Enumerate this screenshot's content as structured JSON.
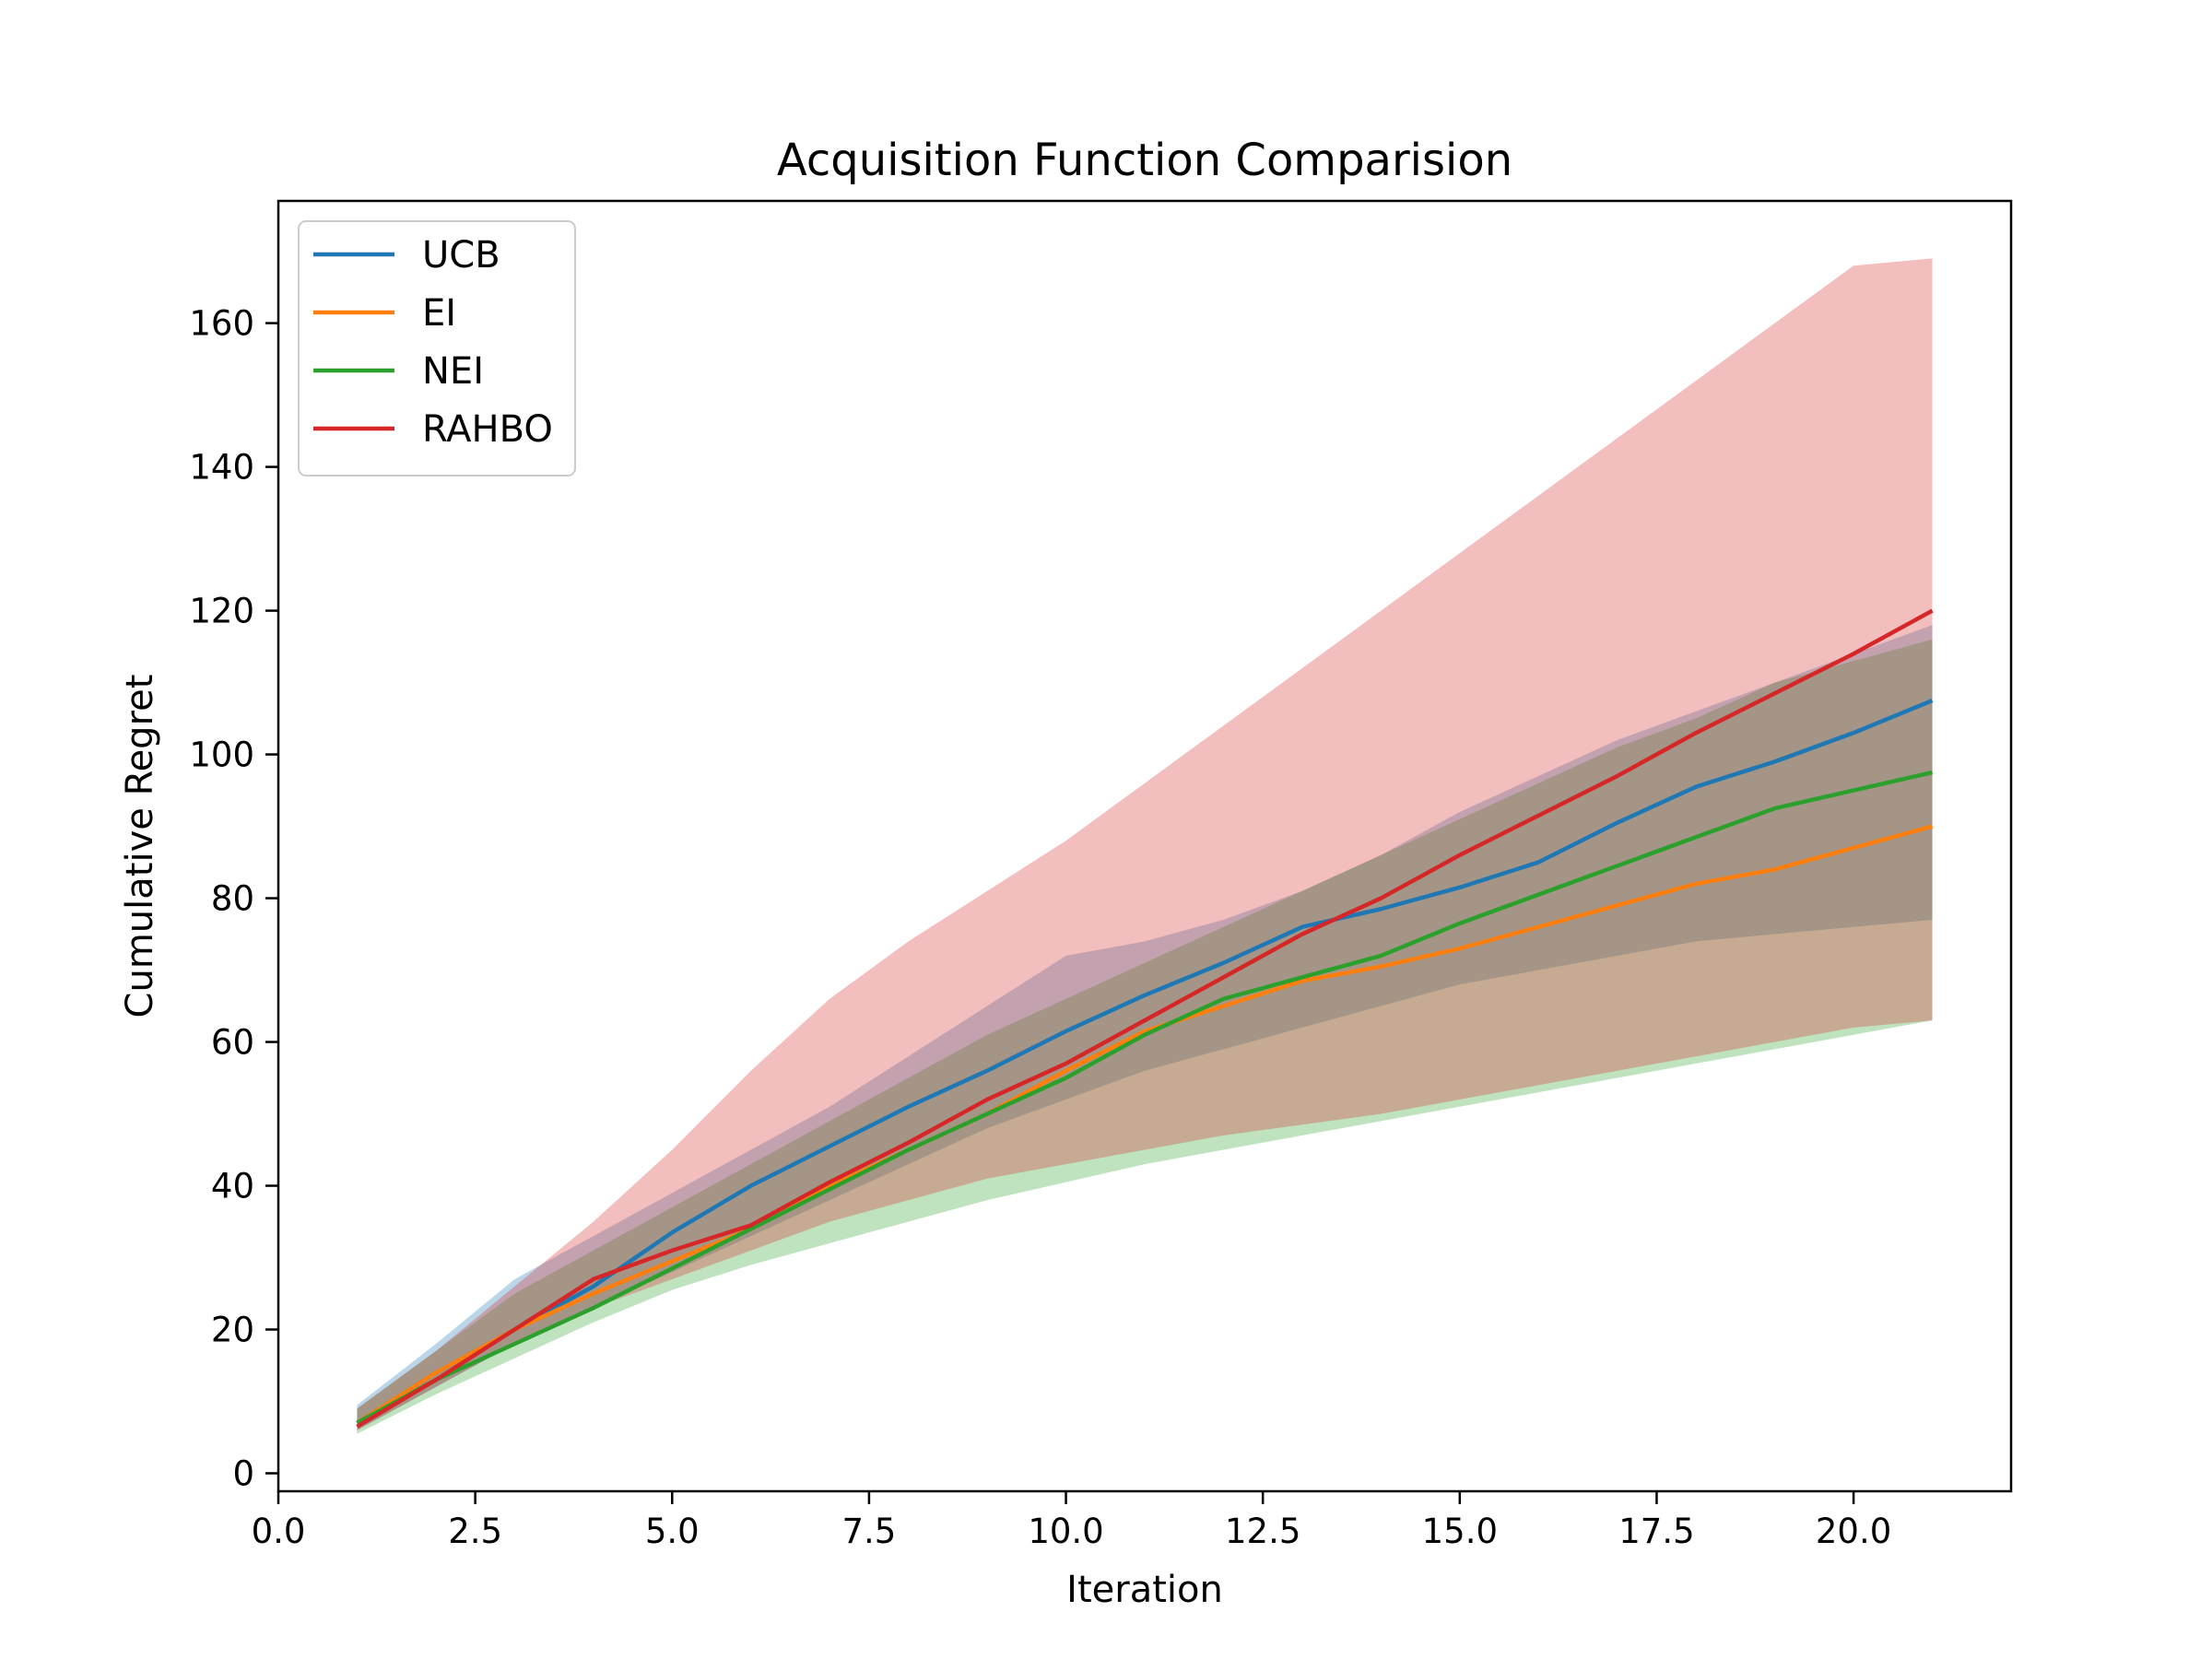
{
  "chart_data": {
    "type": "line",
    "title": "Acquisition Function Comparision",
    "xlabel": "Iteration",
    "ylabel": "Cumulative Regret",
    "xlim": [
      0.0,
      22.0
    ],
    "ylim": [
      -2.5,
      177
    ],
    "xticks": [
      0.0,
      2.5,
      5.0,
      7.5,
      10.0,
      12.5,
      15.0,
      17.5,
      20.0
    ],
    "xtick_labels": [
      "0.0",
      "2.5",
      "5.0",
      "7.5",
      "10.0",
      "12.5",
      "15.0",
      "17.5",
      "20.0"
    ],
    "yticks": [
      0,
      20,
      40,
      60,
      80,
      100,
      120,
      140,
      160
    ],
    "ytick_labels": [
      "0",
      "20",
      "40",
      "60",
      "80",
      "100",
      "120",
      "140",
      "160"
    ],
    "grid": false,
    "legend_position": "top-left",
    "x": [
      1,
      2,
      3,
      4,
      5,
      6,
      7,
      8,
      9,
      10,
      11,
      12,
      13,
      14,
      15,
      16,
      17,
      18,
      19,
      20,
      21
    ],
    "series": [
      {
        "name": "UCB",
        "color": "#1f77b4",
        "values": [
          7,
          14,
          20,
          26,
          33.5,
          40,
          45.5,
          51,
          56,
          61.5,
          66.5,
          71,
          76,
          78.5,
          81.5,
          85,
          90.5,
          95.5,
          99,
          103,
          107.5
        ],
        "lower": [
          6,
          12,
          18,
          23,
          28,
          33,
          38,
          43,
          48,
          52,
          56,
          59,
          62,
          65,
          68,
          70,
          72,
          74,
          75,
          76,
          77
        ],
        "upper": [
          9.5,
          18,
          27,
          33,
          39,
          45,
          51,
          58,
          65,
          72,
          74,
          77,
          81,
          86,
          92,
          97,
          102,
          106,
          110,
          114,
          118
        ]
      },
      {
        "name": "EI",
        "color": "#ff7f0e",
        "values": [
          7,
          14,
          20,
          25,
          29.5,
          34,
          40,
          45,
          50,
          56,
          61.5,
          65,
          68.5,
          70.5,
          73,
          76,
          79,
          82,
          84,
          87,
          90
        ]
      },
      {
        "name": "NEI",
        "color": "#2ca02c",
        "values": [
          7,
          13,
          18,
          23,
          28.5,
          34,
          39.5,
          45,
          50,
          55,
          61,
          66,
          69,
          72,
          76.5,
          80.5,
          84.5,
          88.5,
          92.5,
          95,
          97.5
        ],
        "lower": [
          5.5,
          11,
          16,
          21,
          25.5,
          29,
          32,
          35,
          38,
          40.5,
          43,
          45,
          47,
          49,
          51,
          53,
          55,
          57,
          59,
          61,
          63
        ],
        "upper": [
          9,
          17,
          25,
          31,
          37,
          43,
          49,
          55,
          61,
          66,
          71,
          76,
          81,
          86,
          91,
          96,
          101,
          105,
          110,
          113,
          116
        ]
      },
      {
        "name": "RAHBO",
        "color": "#d62728",
        "values": [
          6.5,
          13,
          20,
          27,
          31,
          34.5,
          40.5,
          46,
          52,
          57,
          63,
          69,
          75,
          80,
          86,
          91.5,
          97,
          103,
          108.5,
          114,
          120
        ],
        "lower": [
          6,
          12,
          18,
          23,
          27,
          31,
          35,
          38,
          41,
          43,
          45,
          47,
          48.5,
          50,
          52,
          54,
          56,
          58,
          60,
          62,
          63
        ],
        "upper": [
          9,
          17,
          26,
          35,
          45,
          56,
          66,
          74,
          81,
          88,
          96,
          104,
          112,
          120,
          128,
          136,
          144,
          152,
          160,
          168,
          169
        ]
      }
    ]
  }
}
